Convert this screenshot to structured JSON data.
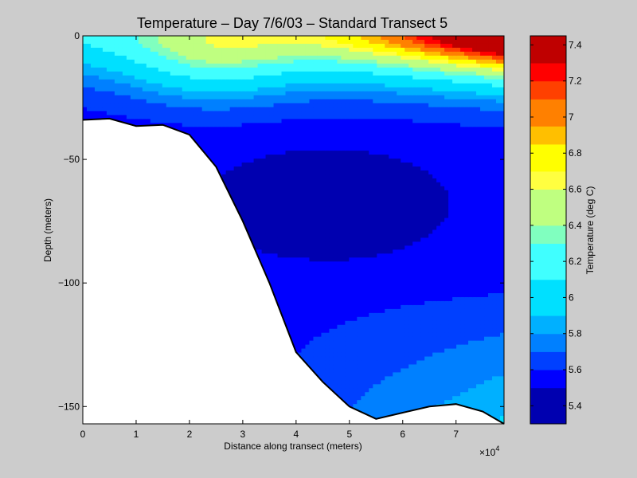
{
  "chart_data": {
    "type": "heatmap",
    "title": "Temperature – Day 7/6/03 – Standard Transect 5",
    "xlabel": "Distance along transect (meters)",
    "ylabel": "Depth (meters)",
    "x_multiplier_base": "×10",
    "x_multiplier_exp": "4",
    "xlim": [
      0,
      7.9
    ],
    "ylim": [
      -157,
      0
    ],
    "x_ticks": [
      "0",
      "1",
      "2",
      "3",
      "4",
      "5",
      "6",
      "7"
    ],
    "y_ticks": [
      "0",
      "-50",
      "-100",
      "-150"
    ],
    "colorbar": {
      "label": "Temperature (deg C)",
      "range": [
        5.3,
        7.45
      ],
      "tick_labels": [
        "5.4",
        "5.6",
        "5.8",
        "6",
        "6.2",
        "6.4",
        "6.6",
        "6.8",
        "7",
        "7.2",
        "7.4"
      ],
      "levels": [
        {
          "min": 5.3,
          "max": 5.5,
          "color": "#0000b0"
        },
        {
          "min": 5.5,
          "max": 5.6,
          "color": "#0000ff"
        },
        {
          "min": 5.6,
          "max": 5.7,
          "color": "#0040ff"
        },
        {
          "min": 5.7,
          "max": 5.8,
          "color": "#0080ff"
        },
        {
          "min": 5.8,
          "max": 5.9,
          "color": "#00b0ff"
        },
        {
          "min": 5.9,
          "max": 6.1,
          "color": "#00e0ff"
        },
        {
          "min": 6.1,
          "max": 6.3,
          "color": "#40ffff"
        },
        {
          "min": 6.3,
          "max": 6.4,
          "color": "#80ffbf"
        },
        {
          "min": 6.4,
          "max": 6.6,
          "color": "#bfff80"
        },
        {
          "min": 6.6,
          "max": 6.7,
          "color": "#ffff40"
        },
        {
          "min": 6.7,
          "max": 6.85,
          "color": "#ffff00"
        },
        {
          "min": 6.85,
          "max": 6.95,
          "color": "#ffbf00"
        },
        {
          "min": 6.95,
          "max": 7.1,
          "color": "#ff8000"
        },
        {
          "min": 7.1,
          "max": 7.2,
          "color": "#ff4000"
        },
        {
          "min": 7.2,
          "max": 7.3,
          "color": "#ff0000"
        },
        {
          "min": 7.3,
          "max": 7.45,
          "color": "#bf0000"
        }
      ]
    },
    "bathymetry": [
      [
        0,
        -34
      ],
      [
        0.5,
        -33.5
      ],
      [
        1,
        -36.5
      ],
      [
        1.5,
        -36
      ],
      [
        2,
        -40
      ],
      [
        2.5,
        -53
      ],
      [
        3,
        -75
      ],
      [
        3.5,
        -100
      ],
      [
        4,
        -128
      ],
      [
        4.5,
        -140
      ],
      [
        5,
        -150
      ],
      [
        5.5,
        -155
      ],
      [
        6,
        -152.5
      ],
      [
        6.5,
        -150
      ],
      [
        7,
        -149
      ],
      [
        7.5,
        -152
      ],
      [
        7.9,
        -157
      ]
    ]
  }
}
